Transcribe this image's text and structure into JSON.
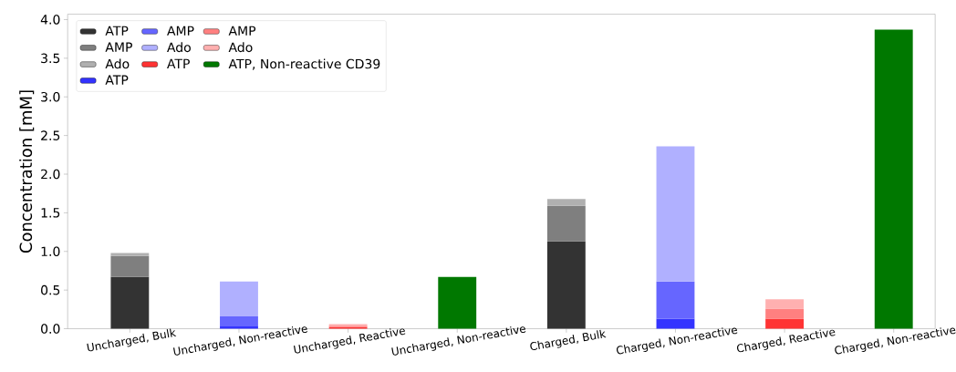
{
  "chart_data": {
    "type": "bar",
    "stacked": true,
    "ylabel": "Concentration [mM]",
    "categories": [
      "Uncharged, Bulk",
      "Uncharged, Non-reactive",
      "Uncharged, Reactive",
      "Uncharged, Non-reactive",
      "Charged, Bulk",
      "Charged, Non-reactive",
      "Charged, Reactive",
      "Charged, Non-reactive"
    ],
    "series": [
      {
        "name": "ATP",
        "color": "#333333",
        "values": [
          0.67,
          null,
          null,
          null,
          1.13,
          null,
          null,
          null
        ]
      },
      {
        "name": "AMP",
        "color": "#7f7f7f",
        "values": [
          0.27,
          null,
          null,
          null,
          0.46,
          null,
          null,
          null
        ]
      },
      {
        "name": "Ado",
        "color": "#b0b0b0",
        "values": [
          0.04,
          null,
          null,
          null,
          0.09,
          null,
          null,
          null
        ]
      },
      {
        "name": "ATP",
        "color": "#3333ff",
        "values": [
          null,
          0.04,
          null,
          null,
          null,
          0.13,
          null,
          null
        ]
      },
      {
        "name": "AMP",
        "color": "#6666ff",
        "values": [
          null,
          0.12,
          null,
          null,
          null,
          0.48,
          null,
          null
        ]
      },
      {
        "name": "Ado",
        "color": "#b0b0ff",
        "values": [
          null,
          0.45,
          null,
          null,
          null,
          1.75,
          null,
          null
        ]
      },
      {
        "name": "ATP",
        "color": "#ff3333",
        "values": [
          null,
          null,
          0.02,
          null,
          null,
          null,
          0.13,
          null
        ]
      },
      {
        "name": "AMP",
        "color": "#ff8080",
        "values": [
          null,
          null,
          0.02,
          null,
          null,
          null,
          0.13,
          null
        ]
      },
      {
        "name": "Ado",
        "color": "#ffb0b0",
        "values": [
          null,
          null,
          0.02,
          null,
          null,
          null,
          0.12,
          null
        ]
      },
      {
        "name": "ATP, Non-reactive CD39",
        "color": "#007800",
        "values": [
          null,
          null,
          null,
          0.67,
          null,
          null,
          null,
          3.87
        ]
      }
    ],
    "ylim": [
      0,
      4.07
    ],
    "yticks": [
      {
        "value": 0,
        "label": "0.0"
      },
      {
        "value": 0.5,
        "label": "0.5"
      },
      {
        "value": 1,
        "label": "1.0"
      },
      {
        "value": 1.5,
        "label": "1.5"
      },
      {
        "value": 2,
        "label": "2.0"
      },
      {
        "value": 2.5,
        "label": "2.5"
      },
      {
        "value": 3,
        "label": "3.0"
      },
      {
        "value": 3.5,
        "label": "3.5"
      },
      {
        "value": 4,
        "label": "4.0"
      }
    ],
    "legend": "top left"
  }
}
